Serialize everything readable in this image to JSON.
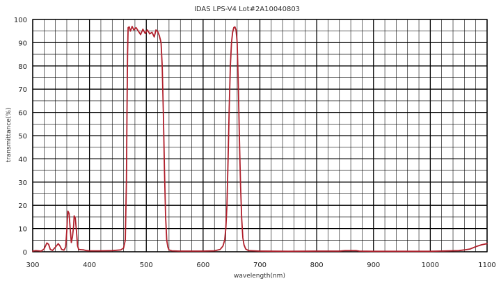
{
  "chart_data": {
    "type": "line",
    "title": "IDAS LPS-V4 Lot#2A10040803",
    "xlabel": "wavelength(nm)",
    "ylabel": "transmittance(%)",
    "xlim": [
      300,
      1100
    ],
    "ylim": [
      0,
      100
    ],
    "x_ticks": [
      300,
      400,
      500,
      600,
      700,
      800,
      900,
      1000,
      1100
    ],
    "y_ticks": [
      0,
      10,
      20,
      30,
      40,
      50,
      60,
      70,
      80,
      90,
      100
    ],
    "x_minor_step": 20,
    "y_minor_step": 5,
    "grid": true,
    "legend": "none",
    "line_color": "#b0202c",
    "series": [
      {
        "x": [
          300,
          305,
          310,
          315,
          320,
          325,
          328,
          331,
          335,
          340,
          345,
          348,
          351,
          355,
          358,
          360,
          361,
          362,
          364,
          366,
          368,
          370,
          372,
          373,
          375,
          377,
          379,
          381,
          385,
          390,
          395,
          400,
          420,
          440,
          455,
          460,
          463,
          465,
          466,
          467,
          468,
          470,
          472,
          475,
          478,
          482,
          486,
          490,
          494,
          498,
          502,
          506,
          510,
          514,
          517,
          520,
          523,
          526,
          528,
          530,
          532,
          534,
          536,
          538,
          540,
          545,
          560,
          580,
          600,
          620,
          630,
          635,
          638,
          640,
          642,
          644,
          646,
          648,
          650,
          652,
          654,
          656,
          658,
          660,
          662,
          664,
          665,
          666,
          668,
          670,
          672,
          675,
          680,
          700,
          750,
          800,
          840,
          850,
          870,
          875,
          900,
          950,
          1000,
          1050,
          1060,
          1070,
          1080,
          1090,
          1100
        ],
        "y": [
          0.3,
          0.5,
          0.4,
          0.3,
          1.2,
          3.8,
          3.2,
          1.0,
          0.6,
          2.0,
          3.5,
          2.5,
          1.0,
          0.7,
          2.0,
          9.0,
          14.0,
          17.5,
          16.5,
          10.0,
          4.0,
          6.5,
          11.0,
          15.5,
          14.5,
          9.0,
          2.5,
          1.0,
          0.9,
          0.8,
          0.5,
          0.4,
          0.4,
          0.5,
          0.8,
          1.6,
          5.0,
          30.0,
          60.0,
          85.0,
          96.5,
          96.8,
          95.0,
          97.0,
          95.5,
          96.5,
          95.0,
          93.5,
          95.8,
          94.0,
          95.5,
          93.8,
          94.5,
          92.5,
          95.5,
          94.8,
          93.0,
          90.0,
          80.0,
          60.0,
          35.0,
          15.0,
          5.0,
          2.0,
          0.8,
          0.4,
          0.3,
          0.3,
          0.3,
          0.4,
          1.0,
          2.5,
          5.0,
          10.0,
          20.0,
          40.0,
          62.0,
          80.0,
          90.0,
          94.5,
          96.5,
          96.8,
          95.5,
          90.0,
          72.0,
          48.0,
          38.0,
          28.0,
          14.0,
          6.0,
          3.0,
          1.2,
          0.5,
          0.3,
          0.2,
          0.3,
          0.3,
          0.5,
          0.5,
          0.3,
          0.2,
          0.2,
          0.2,
          0.5,
          0.8,
          1.2,
          2.2,
          3.0,
          3.5
        ]
      }
    ]
  }
}
